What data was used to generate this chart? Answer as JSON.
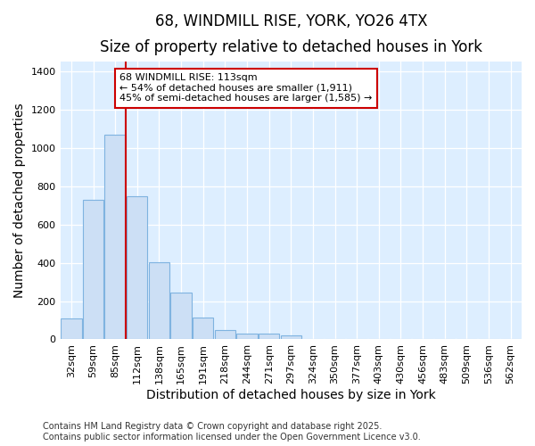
{
  "title1": "68, WINDMILL RISE, YORK, YO26 4TX",
  "title2": "Size of property relative to detached houses in York",
  "xlabel": "Distribution of detached houses by size in York",
  "ylabel": "Number of detached properties",
  "categories": [
    "32sqm",
    "59sqm",
    "85sqm",
    "112sqm",
    "138sqm",
    "165sqm",
    "191sqm",
    "218sqm",
    "244sqm",
    "271sqm",
    "297sqm",
    "324sqm",
    "350sqm",
    "377sqm",
    "403sqm",
    "430sqm",
    "456sqm",
    "483sqm",
    "509sqm",
    "536sqm",
    "562sqm"
  ],
  "values": [
    110,
    730,
    1070,
    750,
    405,
    245,
    115,
    50,
    28,
    28,
    20,
    0,
    0,
    0,
    0,
    0,
    0,
    0,
    0,
    0,
    0
  ],
  "bar_color": "#ccdff5",
  "bar_edge_color": "#7fb3e0",
  "vline_x": 2.5,
  "vline_color": "#cc0000",
  "annotation_text": "68 WINDMILL RISE: 113sqm\n← 54% of detached houses are smaller (1,911)\n45% of semi-detached houses are larger (1,585) →",
  "ann_edge_color": "#cc0000",
  "ann_bg_color": "#ffffff",
  "ylim": [
    0,
    1450
  ],
  "yticks": [
    0,
    200,
    400,
    600,
    800,
    1000,
    1200,
    1400
  ],
  "plot_bg_color": "#ddeeff",
  "fig_bg_color": "#ffffff",
  "grid_color": "#ffffff",
  "footer": "Contains HM Land Registry data © Crown copyright and database right 2025.\nContains public sector information licensed under the Open Government Licence v3.0.",
  "title_fontsize": 12,
  "subtitle_fontsize": 10,
  "annotation_fontsize": 8,
  "tick_fontsize": 8,
  "label_fontsize": 10,
  "footer_fontsize": 7
}
